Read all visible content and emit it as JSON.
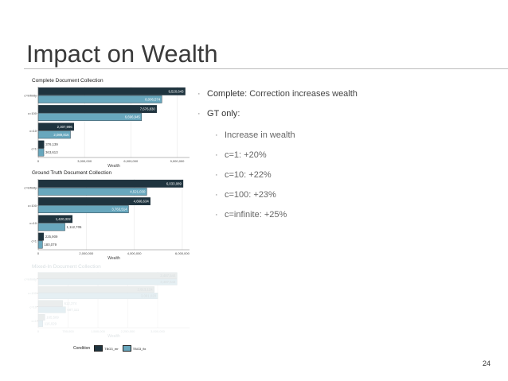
{
  "slide": {
    "title": "Impact on Wealth",
    "page_number": "24"
  },
  "colors": {
    "dark": "#1f343f",
    "light": "#68a7bd",
    "faded_dark": "#eaeded",
    "faded_light": "#e5eff3",
    "rule": "#bdbdbd"
  },
  "bullets": [
    {
      "level": 1,
      "label": "Complete",
      "text": ": Correction increases wealth"
    },
    {
      "level": 1,
      "label": "GT only",
      "text": ":"
    },
    {
      "level": 2,
      "label": "",
      "text": "Increase in wealth"
    },
    {
      "level": 2,
      "label": "",
      "text": "c=1:  +20%"
    },
    {
      "level": 2,
      "label": "",
      "text": "c=10:  +22%"
    },
    {
      "level": 2,
      "label": "",
      "text": "c=100:  +23%"
    },
    {
      "level": 2,
      "label": "",
      "text": "c=infinite:  +25%"
    }
  ],
  "legend": {
    "title": "Condition",
    "entries": [
      "TBG3_err",
      "TBG3_fix"
    ]
  },
  "chart_data": [
    {
      "type": "bar",
      "orientation": "horizontal",
      "title": "Complete Document Collection",
      "xlabel": "Wealth",
      "ylabel": "",
      "xlim": [
        0,
        9800000
      ],
      "xticks": [
        0,
        3000000,
        6000000,
        9000000
      ],
      "xtick_labels": [
        "0",
        "3,000,000",
        "6,000,000",
        "9,000,000"
      ],
      "categories": [
        "c=infinity",
        "c=100",
        "c=10",
        "c=1"
      ],
      "series": [
        {
          "name": "TBG3_err",
          "values": [
            9520643,
            7676830,
            2307996,
            376139
          ],
          "labels": [
            "9,520,643",
            "7,676,830",
            "2,307,996",
            "376,139"
          ]
        },
        {
          "name": "TBG3_fix",
          "values": [
            8006574,
            6696945,
            2089816,
            363613
          ],
          "labels": [
            "8,006,574",
            "6,696,945",
            "2,089,816",
            "363,613"
          ]
        }
      ],
      "faded": false
    },
    {
      "type": "bar",
      "orientation": "horizontal",
      "title": "Ground Truth Document Collection",
      "xlabel": "Wealth",
      "ylabel": "",
      "xlim": [
        0,
        6300000
      ],
      "xticks": [
        0,
        2000000,
        4000000,
        6000000
      ],
      "xtick_labels": [
        "0",
        "2,000,000",
        "4,000,000",
        "6,000,000"
      ],
      "categories": [
        "c=infinity",
        "c=100",
        "c=10",
        "c=1"
      ],
      "series": [
        {
          "name": "TBG3_err",
          "values": [
            6033089,
            4666634,
            1420322,
            225909
          ],
          "labels": [
            "6,033,089",
            "4,666,634",
            "1,420,322",
            "225,909"
          ]
        },
        {
          "name": "TBG3_fix",
          "values": [
            4521030,
            3763514,
            1112705,
            180079
          ],
          "labels": [
            "4,521,030",
            "3,763,514",
            "1,112,705",
            "180,079"
          ]
        }
      ],
      "faded": false
    },
    {
      "type": "bar",
      "orientation": "horizontal",
      "title": "Mixed-In Document Collection",
      "xlabel": "Wealth",
      "ylabel": "",
      "xlim": [
        0,
        3800000
      ],
      "xticks": [
        0,
        750000,
        1500000,
        2250000,
        3000000
      ],
      "xtick_labels": [
        "0",
        "750,000",
        "1,500,000",
        "2,250,000",
        "3,000,000"
      ],
      "categories": [
        "c=infinity",
        "c=100",
        "c=10",
        "c=1"
      ],
      "series": [
        {
          "name": "TBG3_err",
          "values": [
            3487544,
            2913124,
            612374,
            165509
          ],
          "labels": [
            "3,487,544",
            "2,913,124",
            "612,374",
            "165,509"
          ]
        },
        {
          "name": "TBG3_fix",
          "values": [
            3487544,
            3001020,
            687111,
            116029
          ],
          "labels": [
            "3,487,544",
            "3,001,020",
            "687,111",
            "116,029"
          ]
        }
      ],
      "faded": true
    }
  ]
}
